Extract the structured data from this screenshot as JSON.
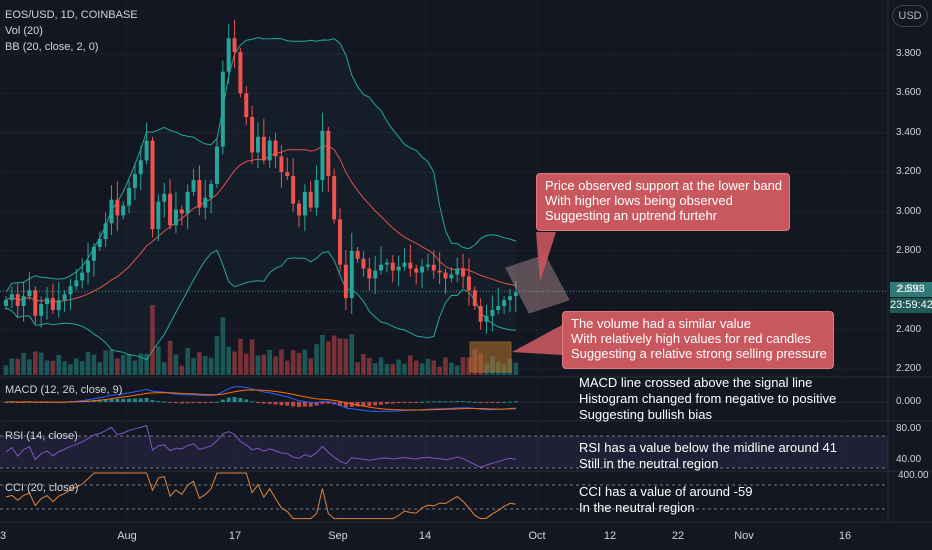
{
  "header": {
    "symbol_line": "EOS/USD, 1D, COINBASE",
    "vol_line": "Vol (20)",
    "bb_line": "BB (20, close, 2, 0)",
    "currency_badge": "USD"
  },
  "price_tags": {
    "last_price": "2.593",
    "countdown": "23:59:42"
  },
  "panes": {
    "macd_label": "MACD (12, 26, close, 9)",
    "rsi_label": "RSI (14, close)",
    "cci_label": "CCI (20, close)"
  },
  "annotations": {
    "price_callout": [
      "Price observed support at the lower band",
      "With higher lows being observed",
      "Suggesting an uptrend furtehr"
    ],
    "volume_callout": [
      "The volume had a similar value",
      "With relatively high values for red candles",
      "Suggesting a relative strong selling pressure"
    ],
    "macd_note": [
      "MACD line crossed above the signal line",
      "Histogram changed from negative to positive",
      "Suggesting bullish bias"
    ],
    "rsi_note": [
      "RSI has a value below the midline around 41",
      "Still in the neutral region"
    ],
    "cci_note": [
      "CCI has a value of around -59",
      "In the neutral region"
    ]
  },
  "colors": {
    "bull": "#26a69a",
    "bear": "#ef5350",
    "bb_band": "#26a69a",
    "bb_basis": "#e0524c",
    "rsi_line": "#7e57c2",
    "cci_line": "#e0843a",
    "callout_bg": "#c8585e",
    "background": "#131722"
  },
  "chart_data": {
    "type": "candlestick",
    "title": "EOS/USD, 1D, COINBASE",
    "x_ticks": [
      "3",
      "Aug",
      "17",
      "Sep",
      "14",
      "Oct",
      "12",
      "22",
      "Nov",
      "16"
    ],
    "price_axis": {
      "ticks": [
        2.2,
        2.4,
        2.6,
        2.8,
        3.0,
        3.2,
        3.4,
        3.6,
        3.8
      ],
      "tick_labels": [
        "2.200",
        "2.400",
        "2.600",
        "2.800",
        "3.000",
        "3.200",
        "3.400",
        "3.600",
        "3.800"
      ],
      "ylim": [
        2.16,
        4.0
      ]
    },
    "macd_axis": {
      "ticks": [
        0.0
      ],
      "tick_labels": [
        "0.000"
      ]
    },
    "rsi_axis": {
      "ticks": [
        80,
        40
      ],
      "tick_labels": [
        "80.00",
        "40.00"
      ],
      "levels": [
        70,
        30
      ]
    },
    "cci_axis": {
      "ticks": [
        400
      ],
      "tick_labels": [
        "400.00"
      ],
      "levels": [
        100,
        -100
      ]
    },
    "last_price": 2.593,
    "candles_close": [
      2.55,
      2.58,
      2.52,
      2.57,
      2.6,
      2.47,
      2.53,
      2.56,
      2.5,
      2.55,
      2.58,
      2.62,
      2.65,
      2.69,
      2.75,
      2.82,
      2.86,
      2.94,
      3.06,
      2.98,
      3.03,
      3.12,
      3.19,
      3.26,
      3.36,
      2.91,
      3.05,
      3.09,
      2.93,
      3.01,
      2.99,
      3.1,
      3.16,
      3.02,
      3.07,
      3.14,
      3.33,
      3.71,
      3.88,
      3.81,
      3.6,
      3.48,
      3.3,
      3.38,
      3.26,
      3.36,
      3.28,
      3.2,
      3.18,
      3.04,
      2.98,
      3.1,
      3.02,
      3.16,
      3.41,
      3.18,
      2.96,
      2.73,
      2.56,
      2.8,
      2.76,
      2.71,
      2.66,
      2.7,
      2.73,
      2.74,
      2.7,
      2.72,
      2.74,
      2.71,
      2.69,
      2.72,
      2.73,
      2.7,
      2.69,
      2.66,
      2.68,
      2.71,
      2.67,
      2.6,
      2.52,
      2.44,
      2.47,
      2.5,
      2.52,
      2.55,
      2.57,
      2.59
    ],
    "rsi_last": 41,
    "cci_last": -59
  }
}
